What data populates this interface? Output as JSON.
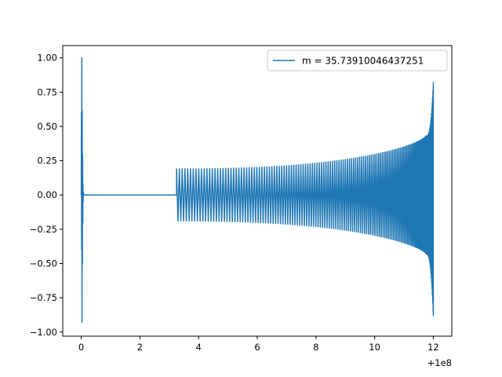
{
  "chart_data": {
    "type": "line",
    "title": "",
    "xlabel": "",
    "ylabel": "",
    "x_offset_label": "+1e8",
    "xlim": [
      -0.63,
      12.63
    ],
    "ylim": [
      -1.03,
      1.09
    ],
    "xticks": [
      0,
      2,
      4,
      6,
      8,
      10,
      12
    ],
    "xtick_labels": [
      "0",
      "2",
      "4",
      "6",
      "8",
      "10",
      "12"
    ],
    "yticks": [
      -1.0,
      -0.75,
      -0.5,
      -0.25,
      0.0,
      0.25,
      0.5,
      0.75,
      1.0
    ],
    "ytick_labels": [
      "−1.00",
      "−0.75",
      "−0.50",
      "−0.25",
      "0.00",
      "0.25",
      "0.50",
      "0.75",
      "1.00"
    ],
    "grid": false,
    "legend_position": "upper right",
    "series": [
      {
        "name": "m = 35.73910046437251",
        "color": "#1f77b4",
        "segments": [
          {
            "kind": "burst",
            "x_start": 0.0,
            "x_end": 0.08,
            "peak_max": 1.0,
            "peak_min": -0.93
          },
          {
            "kind": "flat",
            "x_start": 0.08,
            "x_end": 3.25,
            "value": 0.0
          },
          {
            "kind": "chirp",
            "x_start": 3.25,
            "x_end": 11.75,
            "start_amplitude": 0.19,
            "cycles": 120
          },
          {
            "kind": "ringup",
            "x_start": 11.75,
            "x_end": 12.0,
            "peak_max": 0.82,
            "peak_min": -0.88
          }
        ]
      }
    ]
  }
}
